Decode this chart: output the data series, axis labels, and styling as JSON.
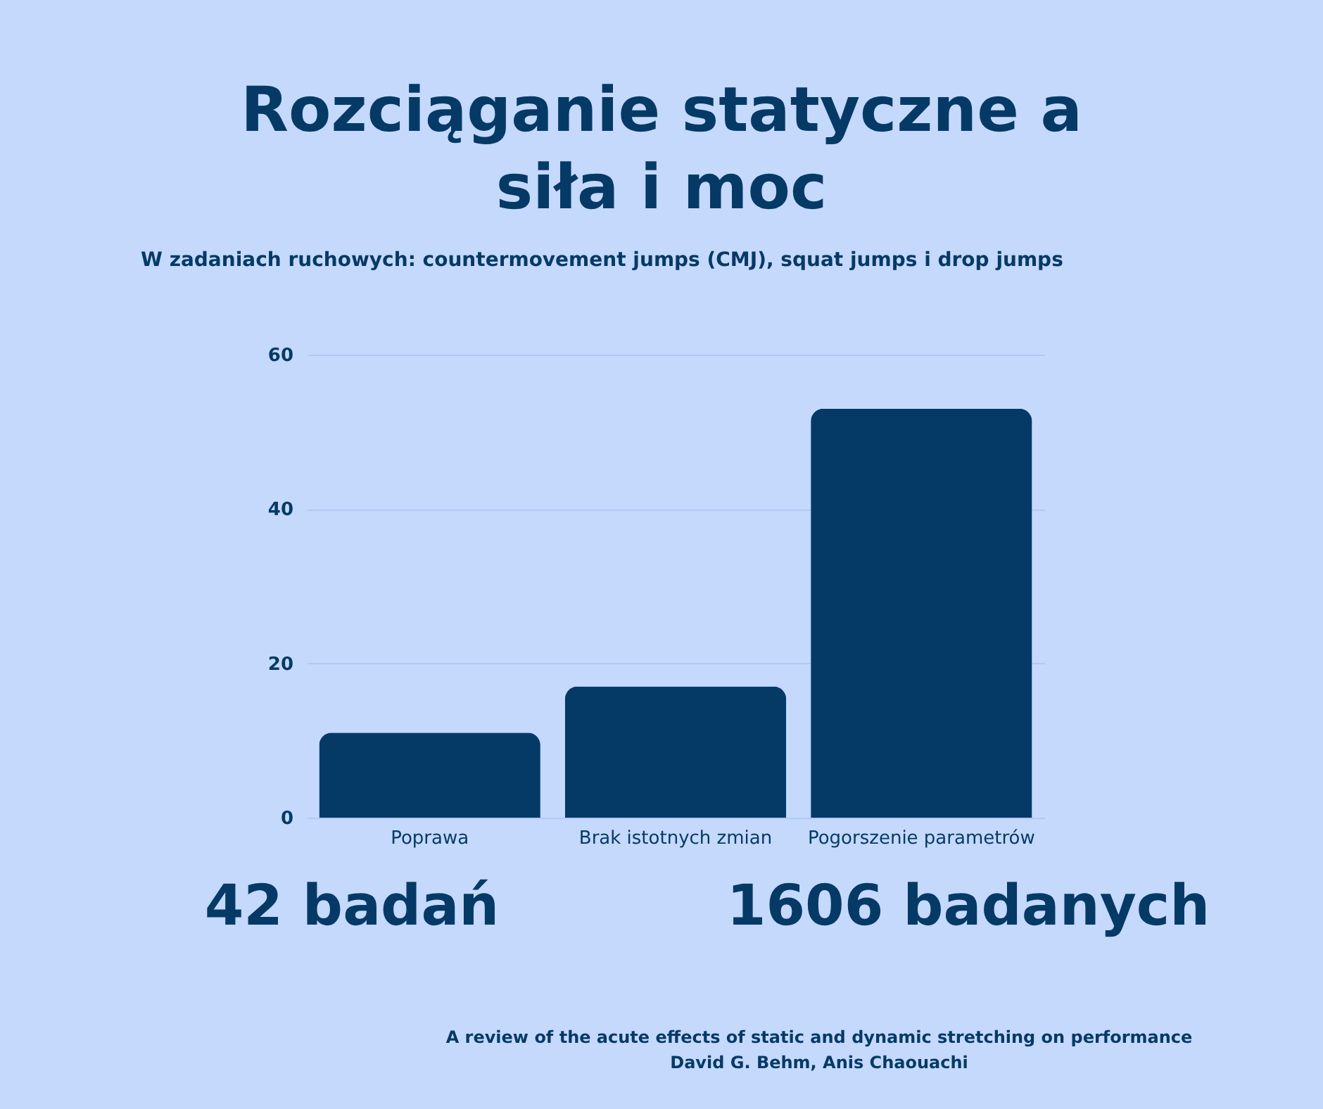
{
  "chart_data": {
    "type": "bar",
    "title": "Rozciąganie statyczne a siła i moc",
    "subtitle": "W zadaniach ruchowych: countermovement jumps (CMJ), squat jumps i drop jumps",
    "categories": [
      "Poprawa",
      "Brak istotnych zmian",
      "Pogorszenie parametrów"
    ],
    "values": [
      11,
      17,
      53
    ],
    "color": "#063a66",
    "ylim": [
      0,
      60
    ],
    "yticks": [
      0,
      20,
      40,
      60
    ],
    "grid": "y",
    "annotations": [
      "42 badań",
      "1606 badanych",
      "A review of the acute effects of static and dynamic stretching on performance",
      "David G. Behm, Anis Chaouachi"
    ]
  }
}
